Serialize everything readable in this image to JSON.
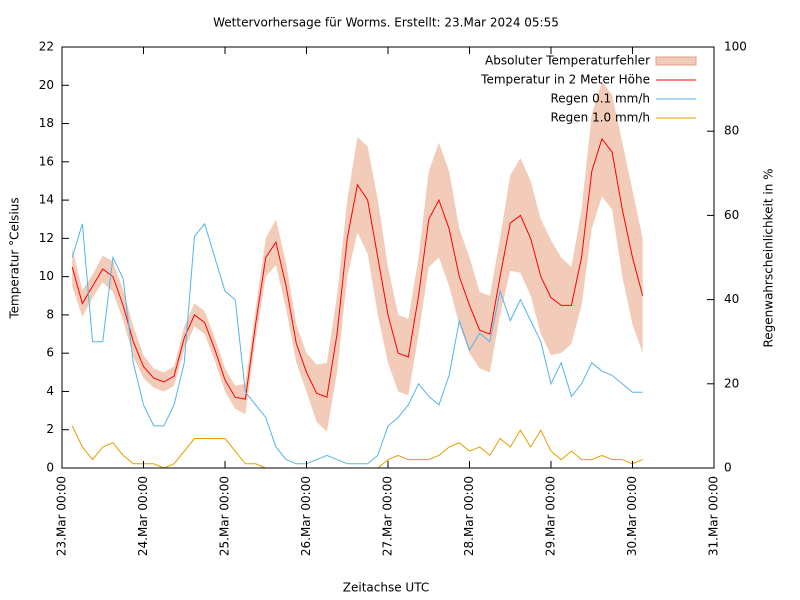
{
  "chart_data": {
    "type": "line",
    "title": "Wettervorhersage für Worms. Erstellt: 23.Mar 2024 05:55",
    "x_label": "Zeitachse UTC",
    "y_label": "Temperatur °Celsius",
    "y2_label": "Regenwahrscheinlichkeit in %",
    "x": [
      3,
      6,
      9,
      12,
      15,
      18,
      21,
      24,
      27,
      30,
      33,
      36,
      39,
      42,
      45,
      48,
      51,
      54,
      57,
      60,
      63,
      66,
      69,
      72,
      75,
      78,
      81,
      84,
      87,
      90,
      93,
      96,
      99,
      102,
      105,
      108,
      111,
      114,
      117,
      120,
      123,
      126,
      129,
      132,
      135,
      138,
      141,
      144,
      147,
      150,
      153,
      156,
      159,
      162,
      165,
      168,
      171
    ],
    "xlim": [
      0,
      192
    ],
    "xticks": [
      {
        "value": 0,
        "label": "23.Mar 00:00"
      },
      {
        "value": 24,
        "label": "24.Mar 00:00"
      },
      {
        "value": 48,
        "label": "25.Mar 00:00"
      },
      {
        "value": 72,
        "label": "26.Mar 00:00"
      },
      {
        "value": 96,
        "label": "27.Mar 00:00"
      },
      {
        "value": 120,
        "label": "28.Mar 00:00"
      },
      {
        "value": 144,
        "label": "29.Mar 00:00"
      },
      {
        "value": 168,
        "label": "30.Mar 00:00"
      },
      {
        "value": 192,
        "label": "31.Mar 00:00"
      }
    ],
    "ylim": [
      0,
      22
    ],
    "yticks": [
      0,
      2,
      4,
      6,
      8,
      10,
      12,
      14,
      16,
      18,
      20,
      22
    ],
    "y2lim": [
      0,
      100
    ],
    "y2ticks": [
      0,
      20,
      40,
      60,
      80,
      100
    ],
    "series": [
      {
        "name": "Absoluter Temperaturfehler",
        "color": "#f2cbb9",
        "band_of": 1,
        "values": [
          1.0,
          0.7,
          0.6,
          0.7,
          0.8,
          0.8,
          0.8,
          0.6,
          0.5,
          0.5,
          0.5,
          0.6,
          0.6,
          0.6,
          0.6,
          0.6,
          0.6,
          0.8,
          0.8,
          1.0,
          1.2,
          1.2,
          1.0,
          1.0,
          1.5,
          1.8,
          2.0,
          2.0,
          2.5,
          2.8,
          3.0,
          2.5,
          2.0,
          2.0,
          2.0,
          2.5,
          3.0,
          3.0,
          2.5,
          2.5,
          2.0,
          2.0,
          2.0,
          2.5,
          3.0,
          3.0,
          3.0,
          3.0,
          2.5,
          2.0,
          2.5,
          3.0,
          3.0,
          3.0,
          3.5,
          3.5,
          3.0
        ]
      },
      {
        "name": "Temperatur in 2 Meter Höhe",
        "color": "#ff0000",
        "values": [
          10.5,
          8.6,
          9.5,
          10.4,
          10.0,
          8.5,
          6.6,
          5.3,
          4.7,
          4.5,
          4.8,
          6.8,
          8.0,
          7.6,
          6.2,
          4.6,
          3.7,
          3.6,
          7.5,
          11.0,
          11.8,
          9.5,
          6.5,
          5.0,
          3.9,
          3.7,
          7.0,
          12.0,
          14.8,
          14.0,
          11.0,
          8.0,
          6.0,
          5.8,
          9.0,
          13.0,
          14.0,
          12.5,
          10.0,
          8.5,
          7.2,
          7.0,
          10.0,
          12.8,
          13.2,
          12.0,
          10.0,
          8.9,
          8.5,
          8.5,
          11.0,
          15.5,
          17.2,
          16.5,
          13.5,
          11.0,
          9.0
        ]
      },
      {
        "name": "Regen 0.1 mm/h",
        "color": "#56b4e9",
        "axis": "y2",
        "values": [
          50,
          58,
          30,
          30,
          50,
          45,
          25,
          15,
          10,
          10,
          15,
          25,
          55,
          58,
          50,
          42,
          40,
          18,
          15,
          12,
          5,
          2,
          1,
          1,
          2,
          3,
          2,
          1,
          1,
          1,
          3,
          10,
          12,
          15,
          20,
          17,
          15,
          22,
          35,
          28,
          32,
          30,
          42,
          35,
          40,
          35,
          30,
          20,
          25,
          17,
          20,
          25,
          23,
          22,
          20,
          18,
          18
        ]
      },
      {
        "name": "Regen 1.0 mm/h",
        "color": "#e69f00",
        "axis": "y2",
        "values": [
          10,
          5,
          2,
          5,
          6,
          3,
          1,
          1,
          1,
          0,
          1,
          4,
          7,
          7,
          7,
          7,
          4,
          1,
          1,
          0,
          0,
          0,
          0,
          0,
          0,
          0,
          0,
          0,
          0,
          0,
          0,
          2,
          3,
          2,
          2,
          2,
          3,
          5,
          6,
          4,
          5,
          3,
          7,
          5,
          9,
          5,
          9,
          4,
          2,
          4,
          2,
          2,
          3,
          2,
          2,
          1,
          2
        ]
      }
    ]
  }
}
